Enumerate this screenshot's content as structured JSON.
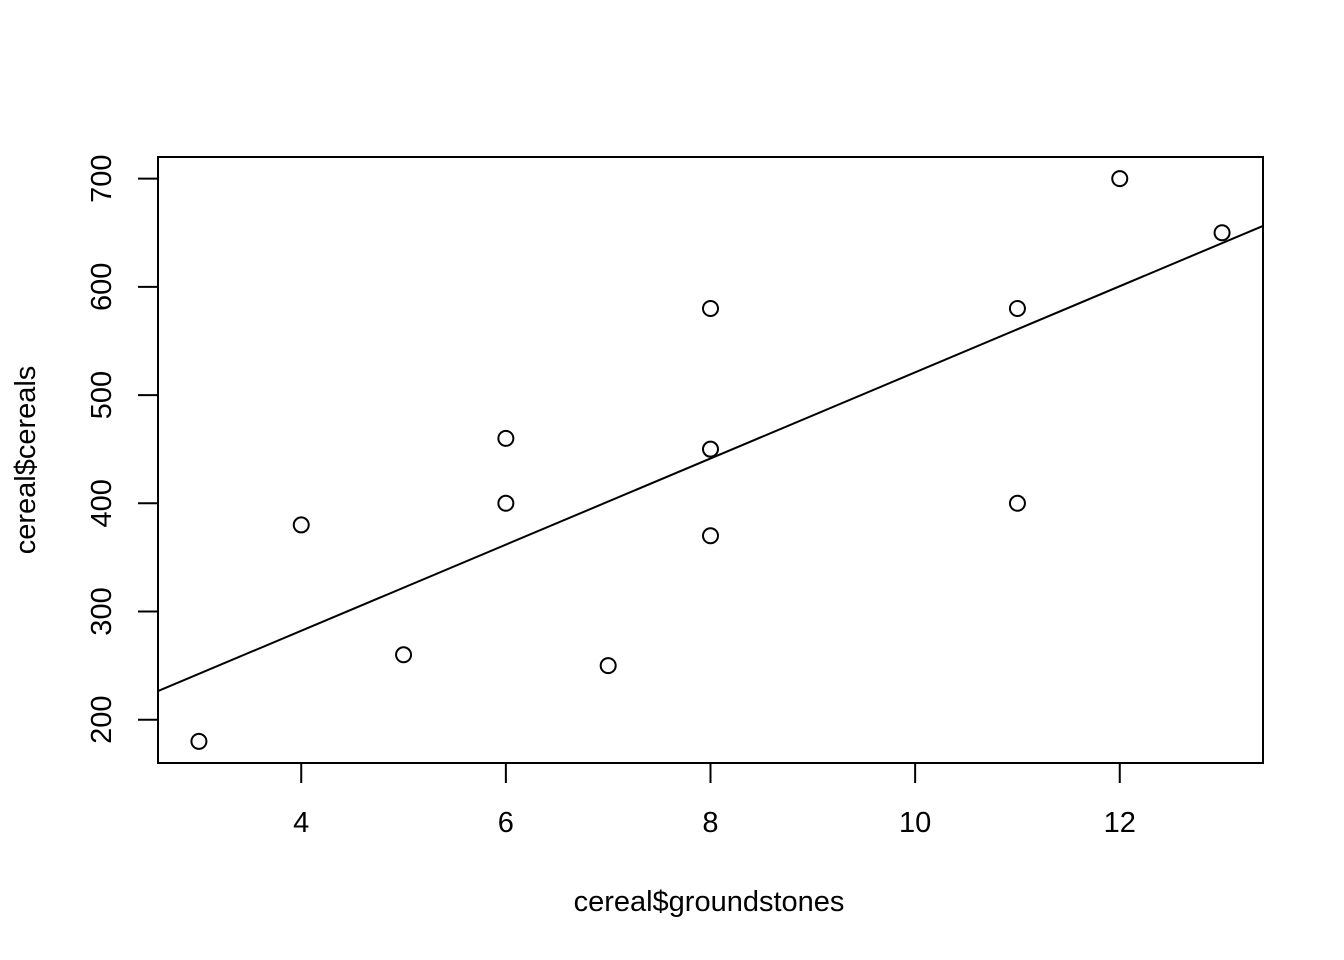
{
  "chart_data": {
    "type": "scatter",
    "title": "",
    "xlabel": "cereal$groundstones",
    "ylabel": "cereal$cereals",
    "xlim": [
      2.6,
      13.4
    ],
    "ylim": [
      160,
      720
    ],
    "x_ticks": [
      4,
      6,
      8,
      10,
      12
    ],
    "y_ticks": [
      200,
      300,
      400,
      500,
      600,
      700
    ],
    "grid": false,
    "legend": "none",
    "points": [
      {
        "x": 3,
        "y": 180
      },
      {
        "x": 4,
        "y": 380
      },
      {
        "x": 5,
        "y": 260
      },
      {
        "x": 6,
        "y": 460
      },
      {
        "x": 6,
        "y": 400
      },
      {
        "x": 7,
        "y": 250
      },
      {
        "x": 8,
        "y": 580
      },
      {
        "x": 8,
        "y": 450
      },
      {
        "x": 8,
        "y": 370
      },
      {
        "x": 11,
        "y": 580
      },
      {
        "x": 11,
        "y": 400
      },
      {
        "x": 12,
        "y": 700
      },
      {
        "x": 13,
        "y": 650
      }
    ],
    "fit_line": {
      "intercept": 123.0,
      "slope": 39.8
    },
    "colors": {
      "points": "#000000",
      "line": "#000000",
      "axes": "#000000"
    }
  }
}
